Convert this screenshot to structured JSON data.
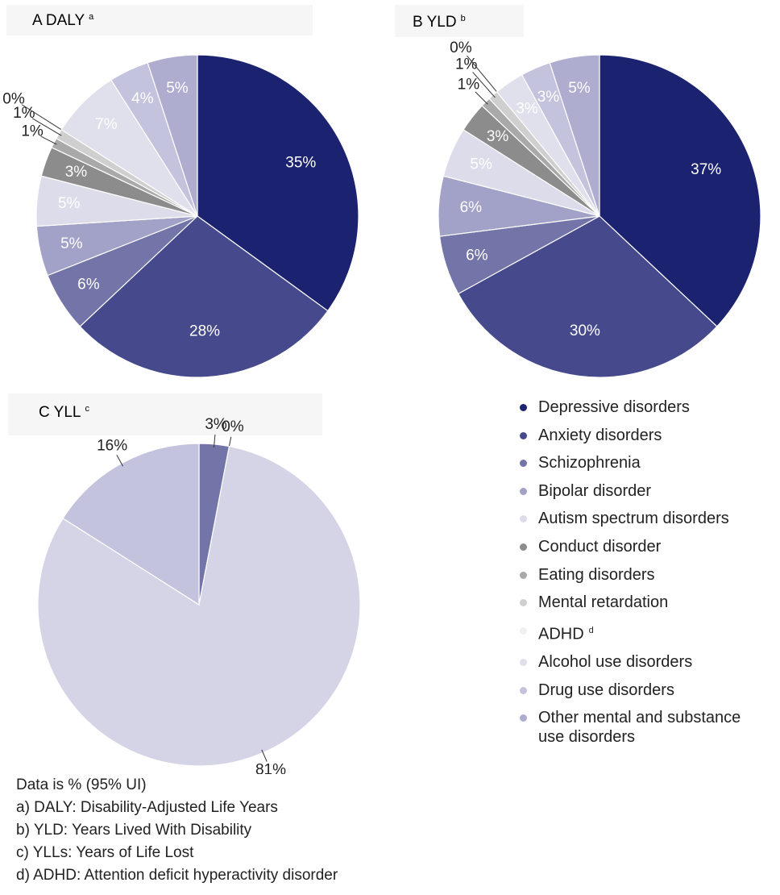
{
  "chart_data": [
    {
      "type": "pie",
      "title": "A DALY",
      "title_sup": "a",
      "values": [
        35,
        28,
        6,
        5,
        5,
        3,
        1,
        1,
        0,
        7,
        4,
        5
      ],
      "value_labels": [
        "35%",
        "28%",
        "6%",
        "5%",
        "5%",
        "3%",
        "1%",
        "1%",
        "0%",
        "7%",
        "4%",
        "5%"
      ]
    },
    {
      "type": "pie",
      "title": "B YLD",
      "title_sup": "b",
      "values": [
        37,
        30,
        6,
        6,
        5,
        3,
        1,
        1,
        0,
        3,
        3,
        5
      ],
      "value_labels": [
        "37%",
        "30%",
        "6%",
        "6%",
        "5%",
        "3%",
        "1%",
        "1%",
        "0%",
        "3%",
        "3%",
        "5%"
      ]
    },
    {
      "type": "pie",
      "title": "C YLL",
      "title_sup": "c",
      "labels_outside": true,
      "values": [
        3,
        0,
        81,
        16
      ],
      "value_labels": [
        "3%",
        "0%",
        "81%",
        "16%"
      ],
      "colors": [
        "#7374a8",
        "#a9a9a9",
        "#d4d4e6",
        "#c4c3dd"
      ]
    }
  ],
  "legend": {
    "items": [
      {
        "label": "Depressive disorders",
        "color": "#1b2370"
      },
      {
        "label": "Anxiety disorders",
        "color": "#464a8c"
      },
      {
        "label": "Schizophrenia",
        "color": "#7374a8"
      },
      {
        "label": "Bipolar disorder",
        "color": "#a2a2c8"
      },
      {
        "label": "Autism spectrum disorders",
        "color": "#dcdcea"
      },
      {
        "label": "Conduct disorder",
        "color": "#8c8c8c"
      },
      {
        "label": "Eating disorders",
        "color": "#a9a9a9"
      },
      {
        "label": "Mental retardation",
        "color": "#cfcfcf"
      },
      {
        "label": "ADHD",
        "sup": "d",
        "color": "#f0f0f0"
      },
      {
        "label": "Alcohol use disorders",
        "color": "#e0e0ec"
      },
      {
        "label": "Drug use disorders",
        "color": "#c4c3dd"
      },
      {
        "label": "Other mental and substance use disorders",
        "color": "#aeadcf"
      }
    ]
  },
  "footnotes": [
    "Data is % (95% UI)",
    "a) DALY: Disability-Adjusted Life Years",
    "b) YLD: Years Lived With Disability",
    "c) YLLs: Years of Life Lost",
    "d) ADHD: Attention deficit hyperactivity disorder"
  ]
}
